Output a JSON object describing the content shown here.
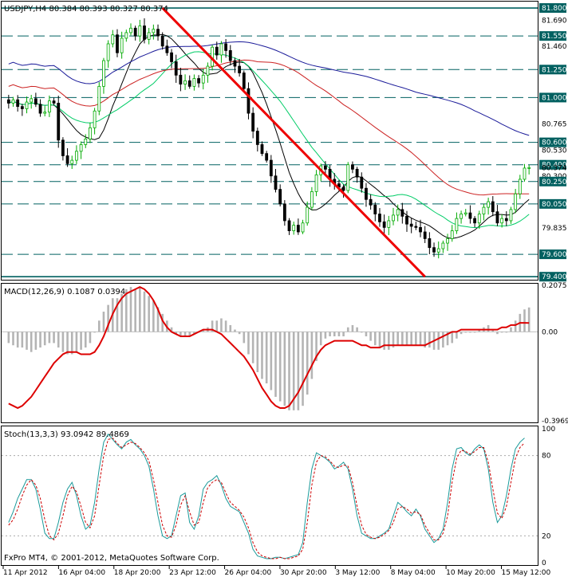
{
  "header": {
    "symbol_text": "USDJPY,H4  80.384 80.393 80.327 80.374",
    "macd_text": "MACD(12,26,9) 0.1087 0.0394",
    "stoch_text": "Stoch(13,3,3) 93.0942 89.4869",
    "copyright": "FxPro MT4, © 2001-2012, MetaQuotes Software Corp."
  },
  "colors": {
    "candle_up": "#00aa00",
    "candle_down": "#000000",
    "ma_fast": "#000000",
    "ma_green": "#00cc66",
    "ma_red": "#cc2222",
    "ma_blue": "#1a1a99",
    "trendline": "#ee0000",
    "level_line": "#006060",
    "macd_hist": "#b4b4b4",
    "macd_signal": "#dd0000",
    "stoch_main": "#1a9a9a",
    "stoch_signal": "#cc0000"
  },
  "price_axis": {
    "labels": [
      "81.800",
      "81.690",
      "81.550",
      "81.460",
      "81.250",
      "81.000",
      "80.765",
      "80.600",
      "80.530",
      "80.400",
      "80.374",
      "80.300",
      "80.250",
      "80.050",
      "79.835",
      "79.600",
      "79.400"
    ],
    "highlighted": [
      "81.800",
      "81.550",
      "81.250",
      "81.000",
      "80.600",
      "80.400",
      "80.250",
      "80.050",
      "79.600",
      "79.400"
    ]
  },
  "macd_axis": {
    "labels": [
      "0.2075",
      "0.00",
      "-0.3969"
    ]
  },
  "stoch_axis": {
    "labels": [
      "100",
      "80",
      "20",
      "0"
    ]
  },
  "time_axis": {
    "labels": [
      "11 Apr 2012",
      "16 Apr 04:00",
      "18 Apr 20:00",
      "23 Apr 12:00",
      "26 Apr 04:00",
      "30 Apr 20:00",
      "3 May 12:00",
      "8 May 04:00",
      "10 May 20:00",
      "15 May 12:00"
    ]
  },
  "chart_data": {
    "type": "line",
    "symbol": "USDJPY",
    "timeframe": "H4",
    "ohlc_last": {
      "open": 80.384,
      "high": 80.393,
      "low": 80.327,
      "close": 80.374
    },
    "price_ylim": [
      79.38,
      81.85
    ],
    "levels": [
      81.8,
      81.55,
      81.25,
      81.0,
      80.6,
      80.4,
      80.25,
      80.05,
      79.6,
      79.4
    ],
    "trendline": {
      "start": {
        "bar": 34,
        "price": 81.8
      },
      "end": {
        "bar": 92,
        "price": 79.4
      }
    },
    "close_series": [
      80.95,
      80.98,
      80.92,
      80.9,
      80.96,
      80.99,
      80.94,
      80.86,
      80.87,
      80.97,
      80.95,
      80.62,
      80.48,
      80.41,
      80.44,
      80.52,
      80.58,
      80.63,
      80.73,
      80.88,
      81.1,
      81.33,
      81.48,
      81.56,
      81.4,
      81.53,
      81.58,
      81.62,
      81.55,
      81.64,
      81.52,
      81.58,
      81.61,
      81.55,
      81.46,
      81.4,
      81.32,
      81.2,
      81.12,
      81.15,
      81.1,
      81.17,
      81.13,
      81.2,
      81.28,
      81.45,
      81.38,
      81.48,
      81.42,
      81.33,
      81.28,
      81.22,
      81.08,
      80.86,
      80.7,
      80.58,
      80.5,
      80.44,
      80.3,
      80.18,
      80.05,
      79.9,
      79.81,
      79.86,
      79.8,
      79.88,
      80.02,
      80.16,
      80.31,
      80.39,
      80.36,
      80.27,
      80.23,
      80.2,
      80.17,
      80.4,
      80.36,
      80.29,
      80.19,
      80.09,
      80.04,
      79.96,
      79.89,
      79.84,
      79.9,
      79.95,
      80.0,
      79.94,
      79.87,
      79.85,
      79.84,
      79.8,
      79.74,
      79.66,
      79.62,
      79.65,
      79.7,
      79.74,
      79.81,
      79.92,
      79.96,
      79.97,
      79.92,
      79.88,
      79.96,
      80.02,
      80.07,
      79.98,
      79.88,
      79.92,
      79.9,
      80.0,
      80.14,
      80.27,
      80.37,
      80.374
    ],
    "ma_periods_note": "",
    "macd_ylim": [
      -0.3969,
      0.2075
    ],
    "macd_hist": [
      -0.05,
      -0.06,
      -0.07,
      -0.07,
      -0.08,
      -0.09,
      -0.08,
      -0.07,
      -0.06,
      -0.05,
      -0.05,
      -0.07,
      -0.09,
      -0.1,
      -0.1,
      -0.09,
      -0.08,
      -0.07,
      -0.05,
      0.0,
      0.05,
      0.09,
      0.12,
      0.15,
      0.15,
      0.17,
      0.19,
      0.2,
      0.19,
      0.2,
      0.18,
      0.16,
      0.14,
      0.11,
      0.08,
      0.05,
      0.02,
      -0.01,
      -0.02,
      -0.02,
      -0.02,
      -0.01,
      0.0,
      0.01,
      0.02,
      0.05,
      0.05,
      0.06,
      0.05,
      0.03,
      0.01,
      -0.01,
      -0.05,
      -0.1,
      -0.14,
      -0.18,
      -0.21,
      -0.23,
      -0.26,
      -0.29,
      -0.31,
      -0.33,
      -0.35,
      -0.35,
      -0.35,
      -0.33,
      -0.28,
      -0.21,
      -0.13,
      -0.06,
      -0.03,
      -0.02,
      -0.02,
      -0.02,
      -0.02,
      0.02,
      0.03,
      0.02,
      0.0,
      -0.02,
      -0.04,
      -0.06,
      -0.07,
      -0.08,
      -0.08,
      -0.07,
      -0.06,
      -0.06,
      -0.06,
      -0.06,
      -0.06,
      -0.06,
      -0.07,
      -0.07,
      -0.08,
      -0.08,
      -0.07,
      -0.06,
      -0.05,
      -0.03,
      -0.01,
      0.0,
      0.0,
      0.0,
      0.01,
      0.02,
      0.03,
      0.01,
      -0.01,
      0.0,
      0.0,
      0.02,
      0.05,
      0.08,
      0.1,
      0.1087
    ],
    "macd_signal": [
      -0.32,
      -0.33,
      -0.34,
      -0.33,
      -0.31,
      -0.29,
      -0.26,
      -0.23,
      -0.2,
      -0.17,
      -0.14,
      -0.12,
      -0.1,
      -0.09,
      -0.09,
      -0.09,
      -0.1,
      -0.1,
      -0.1,
      -0.09,
      -0.06,
      -0.02,
      0.03,
      0.08,
      0.12,
      0.15,
      0.17,
      0.18,
      0.19,
      0.2,
      0.19,
      0.17,
      0.14,
      0.1,
      0.05,
      0.02,
      0.0,
      -0.01,
      -0.02,
      -0.02,
      -0.02,
      -0.01,
      0.0,
      0.01,
      0.01,
      0.01,
      0.0,
      -0.01,
      -0.03,
      -0.05,
      -0.07,
      -0.09,
      -0.11,
      -0.14,
      -0.17,
      -0.21,
      -0.25,
      -0.28,
      -0.31,
      -0.33,
      -0.34,
      -0.34,
      -0.33,
      -0.3,
      -0.27,
      -0.23,
      -0.19,
      -0.15,
      -0.11,
      -0.08,
      -0.06,
      -0.05,
      -0.04,
      -0.04,
      -0.04,
      -0.04,
      -0.04,
      -0.05,
      -0.06,
      -0.06,
      -0.07,
      -0.07,
      -0.07,
      -0.06,
      -0.06,
      -0.06,
      -0.06,
      -0.06,
      -0.06,
      -0.06,
      -0.06,
      -0.06,
      -0.06,
      -0.05,
      -0.04,
      -0.03,
      -0.02,
      -0.01,
      0.0,
      0.0,
      0.01,
      0.01,
      0.01,
      0.01,
      0.01,
      0.01,
      0.01,
      0.01,
      0.01,
      0.02,
      0.02,
      0.03,
      0.03,
      0.04,
      0.04,
      0.0394
    ],
    "stoch_ylim": [
      0,
      100
    ],
    "stoch_main": [
      30,
      38,
      48,
      55,
      62,
      62,
      55,
      40,
      22,
      18,
      18,
      30,
      45,
      55,
      60,
      50,
      35,
      25,
      28,
      45,
      70,
      90,
      96,
      92,
      88,
      85,
      90,
      92,
      88,
      85,
      80,
      72,
      55,
      35,
      20,
      18,
      20,
      35,
      50,
      52,
      30,
      25,
      35,
      55,
      60,
      62,
      65,
      58,
      48,
      42,
      40,
      38,
      30,
      22,
      10,
      5,
      4,
      3,
      3,
      4,
      4,
      3,
      4,
      5,
      6,
      15,
      45,
      70,
      82,
      80,
      78,
      75,
      70,
      72,
      75,
      70,
      55,
      35,
      22,
      20,
      18,
      18,
      20,
      22,
      25,
      35,
      45,
      42,
      38,
      35,
      40,
      35,
      25,
      20,
      15,
      18,
      25,
      45,
      70,
      85,
      86,
      82,
      80,
      85,
      88,
      85,
      70,
      45,
      30,
      35,
      50,
      70,
      85,
      90,
      93.09
    ],
    "stoch_signal": [
      28,
      32,
      40,
      50,
      58,
      62,
      58,
      48,
      32,
      20,
      17,
      22,
      35,
      50,
      57,
      53,
      42,
      30,
      26,
      35,
      58,
      80,
      92,
      93,
      89,
      86,
      88,
      90,
      89,
      86,
      82,
      76,
      62,
      45,
      28,
      20,
      19,
      28,
      43,
      50,
      38,
      28,
      30,
      45,
      56,
      60,
      62,
      60,
      52,
      45,
      42,
      39,
      34,
      26,
      15,
      8,
      5,
      4,
      3,
      3,
      4,
      3,
      3,
      4,
      5,
      10,
      30,
      58,
      75,
      80,
      79,
      76,
      72,
      71,
      73,
      72,
      60,
      42,
      28,
      21,
      19,
      18,
      19,
      21,
      24,
      30,
      40,
      42,
      40,
      37,
      38,
      36,
      28,
      22,
      17,
      17,
      22,
      35,
      60,
      78,
      84,
      83,
      81,
      83,
      86,
      86,
      75,
      55,
      37,
      33,
      42,
      60,
      78,
      86,
      89.49
    ]
  }
}
